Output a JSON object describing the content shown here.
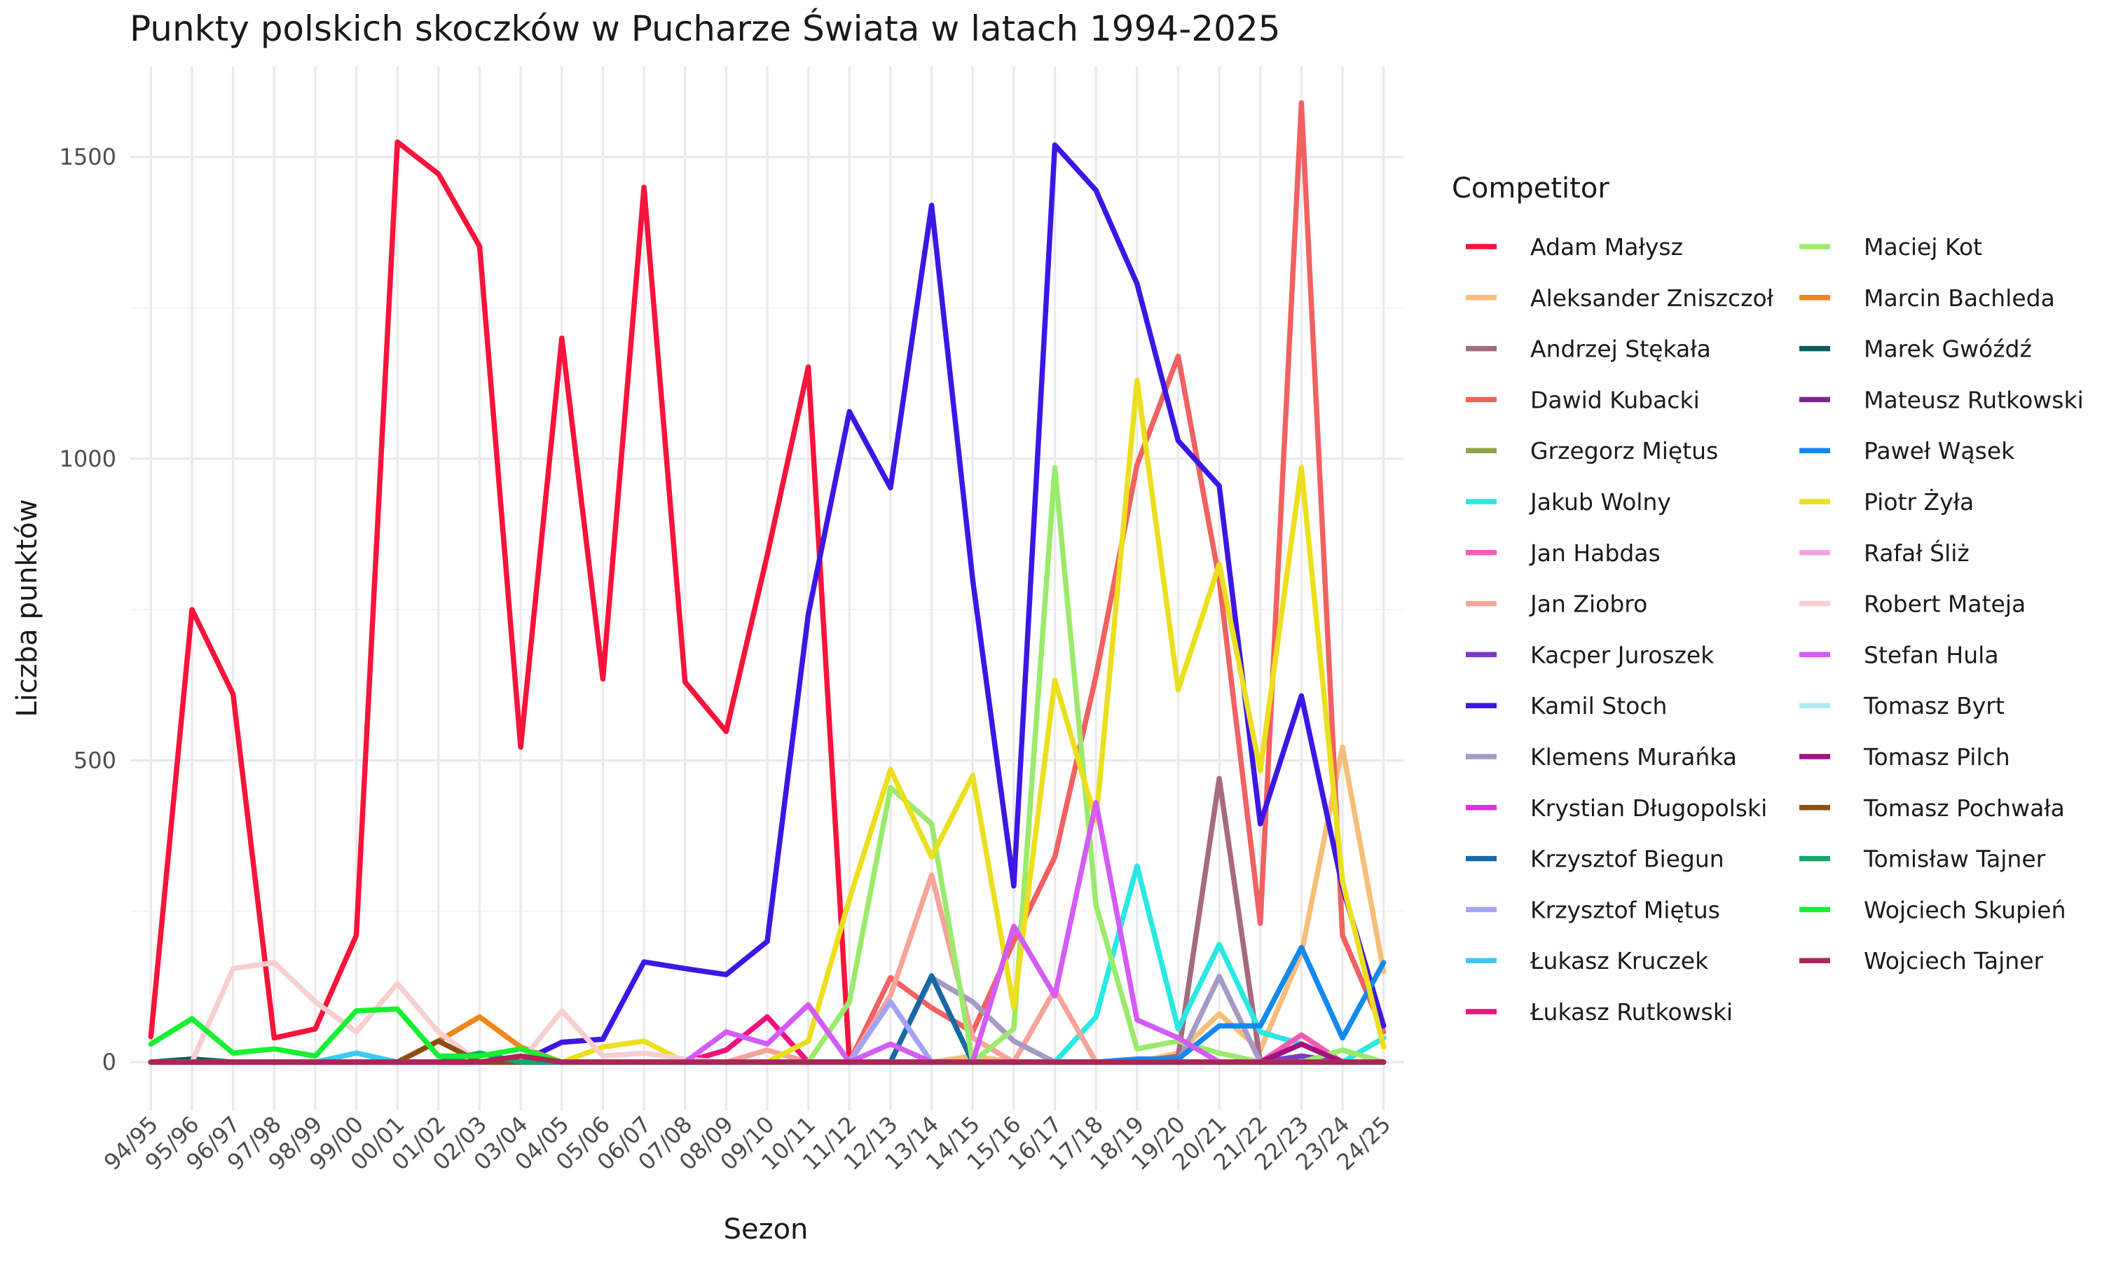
{
  "chart_data": {
    "type": "line",
    "title": "Punkty polskich skoczków w Pucharze Świata w latach 1994-2025",
    "xlabel": "Sezon",
    "ylabel": "Liczba punktów",
    "ylim": [
      -80,
      1650
    ],
    "yticks": [
      0,
      500,
      1000,
      1500
    ],
    "grid": true,
    "legend": {
      "title": "Competitor",
      "placement": "right",
      "columns": 2
    },
    "categories": [
      "94/95",
      "95/96",
      "96/97",
      "97/98",
      "98/99",
      "99/00",
      "00/01",
      "01/02",
      "02/03",
      "03/04",
      "04/05",
      "05/06",
      "06/07",
      "07/08",
      "08/09",
      "09/10",
      "10/11",
      "11/12",
      "12/13",
      "13/14",
      "14/15",
      "15/16",
      "16/17",
      "17/18",
      "18/19",
      "19/20",
      "20/21",
      "21/22",
      "22/23",
      "23/24",
      "24/25"
    ],
    "series": [
      {
        "name": "Adam Małysz",
        "color": "#f8133a",
        "values": [
          42,
          750,
          610,
          40,
          55,
          210,
          1525,
          1472,
          1352,
          522,
          1200,
          635,
          1450,
          630,
          548,
          840,
          1152,
          0,
          0,
          0,
          0,
          0,
          0,
          0,
          0,
          0,
          0,
          0,
          0,
          0,
          0
        ]
      },
      {
        "name": "Aleksander Zniszczoł",
        "color": "#f7be79",
        "values": [
          0,
          0,
          0,
          0,
          0,
          0,
          0,
          0,
          0,
          0,
          0,
          0,
          0,
          0,
          0,
          0,
          0,
          0,
          0,
          0,
          10,
          0,
          0,
          0,
          0,
          15,
          80,
          20,
          180,
          522,
          150
        ]
      },
      {
        "name": "Andrzej Stękała",
        "color": "#a56b7d",
        "values": [
          0,
          0,
          0,
          0,
          0,
          0,
          0,
          0,
          0,
          0,
          0,
          0,
          0,
          0,
          0,
          0,
          0,
          0,
          0,
          0,
          0,
          0,
          0,
          0,
          0,
          10,
          470,
          0,
          0,
          0,
          0
        ]
      },
      {
        "name": "Dawid Kubacki",
        "color": "#f16161",
        "values": [
          0,
          0,
          0,
          0,
          0,
          0,
          0,
          0,
          0,
          0,
          0,
          0,
          0,
          0,
          0,
          0,
          0,
          0,
          140,
          90,
          50,
          200,
          340,
          640,
          990,
          1170,
          800,
          230,
          1590,
          210,
          50
        ]
      },
      {
        "name": "Grzegorz Miętus",
        "color": "#91a54a",
        "values": [
          0,
          0,
          0,
          0,
          0,
          0,
          0,
          0,
          0,
          0,
          0,
          0,
          0,
          0,
          0,
          0,
          0,
          0,
          0,
          0,
          0,
          0,
          0,
          0,
          0,
          0,
          0,
          0,
          0,
          0,
          0
        ]
      },
      {
        "name": "Jakub Wolny",
        "color": "#2ae8e3",
        "values": [
          0,
          0,
          0,
          0,
          0,
          0,
          0,
          0,
          0,
          0,
          0,
          0,
          0,
          0,
          0,
          0,
          0,
          0,
          0,
          0,
          0,
          0,
          0,
          75,
          325,
          55,
          195,
          50,
          30,
          0,
          40
        ]
      },
      {
        "name": "Jan Habdas",
        "color": "#f55bb4",
        "values": [
          0,
          0,
          0,
          0,
          0,
          0,
          0,
          0,
          0,
          0,
          0,
          0,
          0,
          0,
          0,
          0,
          0,
          0,
          0,
          0,
          0,
          0,
          0,
          0,
          0,
          0,
          0,
          0,
          45,
          0,
          0
        ]
      },
      {
        "name": "Jan Ziobro",
        "color": "#f8a39a",
        "values": [
          0,
          0,
          0,
          0,
          0,
          0,
          0,
          0,
          0,
          0,
          0,
          0,
          0,
          0,
          0,
          20,
          0,
          0,
          110,
          310,
          40,
          0,
          120,
          0,
          0,
          0,
          0,
          0,
          0,
          0,
          0
        ]
      },
      {
        "name": "Kacper Juroszek",
        "color": "#7a3ac8",
        "values": [
          0,
          0,
          0,
          0,
          0,
          0,
          0,
          0,
          0,
          0,
          0,
          0,
          0,
          0,
          0,
          0,
          0,
          0,
          0,
          0,
          0,
          0,
          0,
          0,
          0,
          0,
          0,
          0,
          10,
          0,
          0
        ]
      },
      {
        "name": "Kamil Stoch",
        "color": "#3c16e5",
        "values": [
          0,
          0,
          0,
          0,
          0,
          0,
          0,
          0,
          0,
          0,
          33,
          38,
          166,
          155,
          145,
          200,
          742,
          1078,
          952,
          1420,
          800,
          292,
          1520,
          1445,
          1290,
          1030,
          955,
          395,
          607,
          290,
          60
        ]
      },
      {
        "name": "Klemens Murańka",
        "color": "#a59ac6",
        "values": [
          0,
          0,
          0,
          0,
          0,
          0,
          0,
          0,
          0,
          0,
          0,
          0,
          0,
          0,
          0,
          0,
          0,
          0,
          0,
          140,
          100,
          35,
          0,
          0,
          0,
          0,
          142,
          0,
          30,
          0,
          0
        ]
      },
      {
        "name": "Krystian Długopolski",
        "color": "#e42ddc",
        "values": [
          0,
          0,
          0,
          0,
          0,
          0,
          0,
          0,
          0,
          0,
          0,
          0,
          0,
          0,
          0,
          0,
          0,
          0,
          0,
          0,
          0,
          0,
          0,
          0,
          0,
          0,
          0,
          0,
          0,
          0,
          0
        ]
      },
      {
        "name": "Krzysztof Biegun",
        "color": "#1769a2",
        "values": [
          0,
          0,
          0,
          0,
          0,
          0,
          0,
          0,
          0,
          0,
          0,
          0,
          0,
          0,
          0,
          0,
          0,
          0,
          0,
          143,
          0,
          0,
          0,
          0,
          0,
          0,
          0,
          0,
          0,
          0,
          0
        ]
      },
      {
        "name": "Krzysztof Miętus",
        "color": "#a3a3f6",
        "values": [
          0,
          0,
          0,
          0,
          0,
          0,
          0,
          0,
          0,
          0,
          0,
          0,
          0,
          0,
          0,
          0,
          0,
          0,
          100,
          0,
          0,
          0,
          0,
          0,
          0,
          0,
          0,
          0,
          0,
          0,
          0
        ]
      },
      {
        "name": "Łukasz Kruczek",
        "color": "#3ccbf7",
        "values": [
          0,
          0,
          0,
          0,
          0,
          15,
          0,
          0,
          0,
          0,
          0,
          0,
          0,
          0,
          0,
          0,
          0,
          0,
          0,
          0,
          0,
          0,
          0,
          0,
          0,
          0,
          0,
          0,
          0,
          0,
          0
        ]
      },
      {
        "name": "Łukasz Rutkowski",
        "color": "#f0107e",
        "values": [
          0,
          0,
          0,
          0,
          0,
          0,
          0,
          0,
          0,
          0,
          0,
          0,
          0,
          0,
          20,
          75,
          0,
          0,
          0,
          0,
          0,
          0,
          0,
          0,
          0,
          0,
          0,
          0,
          0,
          0,
          0
        ]
      },
      {
        "name": "Maciej Kot",
        "color": "#9aeb6b",
        "values": [
          0,
          0,
          0,
          0,
          0,
          0,
          0,
          0,
          0,
          0,
          0,
          0,
          0,
          0,
          0,
          0,
          0,
          100,
          455,
          395,
          0,
          55,
          985,
          260,
          22,
          35,
          15,
          0,
          0,
          20,
          0
        ]
      },
      {
        "name": "Marcin Bachleda",
        "color": "#f0861c",
        "values": [
          0,
          0,
          0,
          0,
          0,
          0,
          0,
          35,
          75,
          25,
          0,
          0,
          0,
          0,
          0,
          0,
          0,
          0,
          0,
          0,
          0,
          0,
          0,
          0,
          0,
          0,
          0,
          0,
          0,
          0,
          0
        ]
      },
      {
        "name": "Marek Gwóźdź",
        "color": "#0a5b5b",
        "values": [
          0,
          5,
          0,
          0,
          0,
          0,
          0,
          0,
          0,
          0,
          0,
          0,
          0,
          0,
          0,
          0,
          0,
          0,
          0,
          0,
          0,
          0,
          0,
          0,
          0,
          0,
          0,
          0,
          0,
          0,
          0
        ]
      },
      {
        "name": "Mateusz Rutkowski",
        "color": "#7a2490",
        "values": [
          0,
          0,
          0,
          0,
          0,
          0,
          0,
          0,
          0,
          0,
          0,
          0,
          0,
          0,
          0,
          0,
          0,
          0,
          0,
          0,
          0,
          0,
          0,
          0,
          0,
          0,
          0,
          0,
          0,
          0,
          0
        ]
      },
      {
        "name": "Paweł Wąsek",
        "color": "#1289ef",
        "values": [
          0,
          0,
          0,
          0,
          0,
          0,
          0,
          0,
          0,
          0,
          0,
          0,
          0,
          0,
          0,
          0,
          0,
          0,
          0,
          0,
          0,
          0,
          0,
          0,
          5,
          5,
          60,
          60,
          190,
          40,
          165
        ]
      },
      {
        "name": "Piotr Żyła",
        "color": "#ecdf1d",
        "values": [
          0,
          0,
          0,
          0,
          0,
          0,
          0,
          0,
          0,
          0,
          0,
          25,
          35,
          0,
          0,
          0,
          35,
          270,
          485,
          340,
          475,
          90,
          633,
          400,
          1130,
          617,
          825,
          483,
          985,
          300,
          25
        ]
      },
      {
        "name": "Rafał Śliż",
        "color": "#f99fe6",
        "values": [
          0,
          0,
          0,
          0,
          0,
          0,
          0,
          0,
          0,
          0,
          0,
          0,
          0,
          0,
          0,
          0,
          0,
          0,
          0,
          0,
          0,
          0,
          0,
          0,
          0,
          0,
          0,
          0,
          0,
          0,
          0
        ]
      },
      {
        "name": "Robert Mateja",
        "color": "#f7cfd1",
        "values": [
          0,
          0,
          155,
          165,
          100,
          50,
          130,
          50,
          0,
          0,
          85,
          10,
          15,
          5,
          0,
          0,
          0,
          0,
          0,
          0,
          0,
          0,
          0,
          0,
          0,
          0,
          0,
          0,
          0,
          0,
          0
        ]
      },
      {
        "name": "Stefan Hula",
        "color": "#d35cf6",
        "values": [
          0,
          0,
          0,
          0,
          0,
          0,
          0,
          0,
          0,
          0,
          0,
          0,
          0,
          0,
          50,
          30,
          95,
          0,
          30,
          0,
          0,
          225,
          110,
          430,
          70,
          40,
          0,
          0,
          0,
          0,
          0
        ]
      },
      {
        "name": "Tomasz Byrt",
        "color": "#b1eaed",
        "values": [
          0,
          0,
          0,
          0,
          0,
          0,
          0,
          0,
          0,
          0,
          0,
          0,
          0,
          0,
          0,
          0,
          0,
          0,
          0,
          0,
          0,
          0,
          0,
          0,
          0,
          0,
          0,
          0,
          0,
          0,
          0
        ]
      },
      {
        "name": "Tomasz Pilch",
        "color": "#a1117f",
        "values": [
          0,
          0,
          0,
          0,
          0,
          0,
          0,
          0,
          0,
          0,
          0,
          0,
          0,
          0,
          0,
          0,
          0,
          0,
          0,
          0,
          0,
          0,
          0,
          0,
          0,
          0,
          0,
          0,
          30,
          0,
          0
        ]
      },
      {
        "name": "Tomasz Pochwała",
        "color": "#8a4f13",
        "values": [
          0,
          0,
          0,
          0,
          0,
          0,
          0,
          35,
          0,
          0,
          0,
          0,
          0,
          0,
          0,
          0,
          0,
          0,
          0,
          0,
          0,
          0,
          0,
          0,
          0,
          0,
          0,
          0,
          0,
          0,
          0
        ]
      },
      {
        "name": "Tomisław Tajner",
        "color": "#15a56e",
        "values": [
          0,
          0,
          0,
          0,
          0,
          0,
          0,
          0,
          15,
          0,
          0,
          0,
          0,
          0,
          0,
          0,
          0,
          0,
          0,
          0,
          0,
          0,
          0,
          0,
          0,
          0,
          0,
          0,
          0,
          0,
          0
        ]
      },
      {
        "name": "Wojciech Skupień",
        "color": "#17f031",
        "values": [
          30,
          72,
          15,
          22,
          10,
          85,
          88,
          10,
          10,
          22,
          0,
          0,
          0,
          0,
          0,
          0,
          0,
          0,
          0,
          0,
          0,
          0,
          0,
          0,
          0,
          0,
          0,
          0,
          0,
          0,
          0
        ]
      },
      {
        "name": "Wojciech Tajner",
        "color": "#ad2458",
        "values": [
          0,
          0,
          0,
          0,
          0,
          0,
          0,
          0,
          0,
          10,
          0,
          0,
          0,
          0,
          0,
          0,
          0,
          0,
          0,
          0,
          0,
          0,
          0,
          0,
          0,
          0,
          0,
          0,
          0,
          0,
          0
        ]
      }
    ]
  }
}
